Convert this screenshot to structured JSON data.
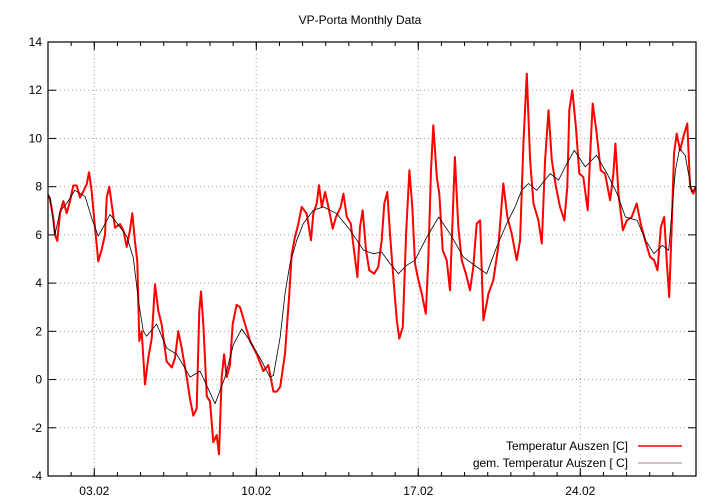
{
  "chart_data": {
    "type": "line",
    "title": "VP-Porta Monthly Data",
    "xlabel": "",
    "ylabel": "",
    "xlim": [
      "01.02 00:00",
      "29.02 00:00"
    ],
    "ylim": [
      -4,
      14
    ],
    "x_ticks": [
      "03.02",
      "10.02",
      "17.02",
      "24.02"
    ],
    "y_ticks": [
      -4,
      -2,
      0,
      2,
      4,
      6,
      8,
      10,
      12,
      14
    ],
    "grid": true,
    "legend_position": "bottom-right",
    "series": [
      {
        "name": "Temperatur Auszen [C]",
        "color": "#ff0000",
        "points": [
          [
            "01.02 00:00",
            7.6
          ],
          [
            "01.02 02:00",
            7.5
          ],
          [
            "01.02 05:30",
            6.7
          ],
          [
            "01.02 07:15",
            6.0
          ],
          [
            "01.02 09:40",
            5.75
          ],
          [
            "01.02 12:25",
            6.9
          ],
          [
            "01.02 15:50",
            7.4
          ],
          [
            "01.02 19:25",
            6.9
          ],
          [
            "01.02 22:50",
            7.4
          ],
          [
            "02.02 02:15",
            8.05
          ],
          [
            "02.02 05:45",
            8.05
          ],
          [
            "02.02 09:10",
            7.55
          ],
          [
            "02.02 12:35",
            7.8
          ],
          [
            "02.02 16:05",
            8.1
          ],
          [
            "02.02 18:30",
            8.6
          ],
          [
            "02.02 21:20",
            7.8
          ],
          [
            "03.02 00:45",
            6.3
          ],
          [
            "03.02 04:10",
            4.9
          ],
          [
            "03.02 07:40",
            5.4
          ],
          [
            "03.02 11:05",
            6.0
          ],
          [
            "03.02 12:50",
            7.55
          ],
          [
            "03.02 15:35",
            8.0
          ],
          [
            "03.02 18:00",
            7.3
          ],
          [
            "03.02 21:30",
            6.3
          ],
          [
            "04.02 02:40",
            6.45
          ],
          [
            "04.02 06:05",
            6.2
          ],
          [
            "04.02 09:35",
            5.5
          ],
          [
            "04.02 13:00",
            6.2
          ],
          [
            "04.02 15:25",
            6.9
          ],
          [
            "04.02 18:10",
            5.75
          ],
          [
            "04.02 20:35",
            4.9
          ],
          [
            "04.02 22:40",
            1.6
          ],
          [
            "05.02 01:10",
            2.0
          ],
          [
            "05.02 04:35",
            -0.2
          ],
          [
            "05.02 08:00",
            0.9
          ],
          [
            "05.02 11:30",
            1.7
          ],
          [
            "05.02 14:55",
            3.95
          ],
          [
            "05.02 18:25",
            2.85
          ],
          [
            "05.02 21:50",
            2.3
          ],
          [
            "06.02 03:00",
            0.75
          ],
          [
            "06.02 08:20",
            0.5
          ],
          [
            "06.02 11:45",
            0.9
          ],
          [
            "06.02 15:10",
            2.0
          ],
          [
            "06.02 18:40",
            1.3
          ],
          [
            "06.02 23:50",
            0.1
          ],
          [
            "07.02 03:15",
            -0.8
          ],
          [
            "07.02 06:40",
            -1.5
          ],
          [
            "07.02 10:15",
            -1.2
          ],
          [
            "07.02 12:55",
            2.85
          ],
          [
            "07.02 14:40",
            3.65
          ],
          [
            "07.02 17:05",
            2.3
          ],
          [
            "07.02 20:40",
            -0.7
          ],
          [
            "08.02 00:00",
            -0.9
          ],
          [
            "08.02 03:25",
            -2.6
          ],
          [
            "08.02 07:00",
            -2.3
          ],
          [
            "08.02 09:20",
            -3.1
          ],
          [
            "08.02 12:10",
            0.1
          ],
          [
            "08.02 14:35",
            1.05
          ],
          [
            "08.02 17:20",
            0.1
          ],
          [
            "08.02 20:45",
            0.6
          ],
          [
            "08.02 23:30",
            2.3
          ],
          [
            "09.02 03:35",
            3.1
          ],
          [
            "09.02 07:05",
            3.0
          ],
          [
            "09.02 12:15",
            2.3
          ],
          [
            "09.02 17:30",
            1.6
          ],
          [
            "10.02 00:30",
            1.05
          ],
          [
            "10.02 07:25",
            0.35
          ],
          [
            "10.02 12:30",
            0.6
          ],
          [
            "10.02 17:45",
            -0.5
          ],
          [
            "10.02 21:10",
            -0.5
          ],
          [
            "11.02 00:45",
            -0.3
          ],
          [
            "11.02 05:45",
            1.07
          ],
          [
            "11.02 10:15",
            3.56
          ],
          [
            "11.02 12:45",
            5.2
          ],
          [
            "11.02 16:05",
            5.9
          ],
          [
            "11.02 19:40",
            6.47
          ],
          [
            "11.02 23:05",
            7.16
          ],
          [
            "12.02 04:15",
            6.88
          ],
          [
            "12.02 08:45",
            5.78
          ],
          [
            "12.02 11:10",
            6.88
          ],
          [
            "12.02 14:40",
            7.3
          ],
          [
            "12.02 17:05",
            8.06
          ],
          [
            "12.02 19:55",
            7.16
          ],
          [
            "12.02 23:20",
            7.78
          ],
          [
            "13.02 02:45",
            7.16
          ],
          [
            "13.02 07:15",
            6.26
          ],
          [
            "13.02 10:40",
            6.74
          ],
          [
            "13.02 15:35",
            7.16
          ],
          [
            "13.02 18:20",
            7.71
          ],
          [
            "13.02 21:50",
            6.74
          ],
          [
            "14.02 02:00",
            6.47
          ],
          [
            "14.02 05:20",
            5.36
          ],
          [
            "14.02 08:50",
            4.25
          ],
          [
            "14.02 11:35",
            6.33
          ],
          [
            "14.02 14:20",
            7.02
          ],
          [
            "14.02 17:45",
            5.36
          ],
          [
            "14.02 21:10",
            4.53
          ],
          [
            "15.02 02:10",
            4.39
          ],
          [
            "15.02 06:30",
            4.67
          ],
          [
            "15.02 10:05",
            5.78
          ],
          [
            "15.02 12:45",
            7.3
          ],
          [
            "15.02 15:50",
            7.78
          ],
          [
            "15.02 18:40",
            6.05
          ],
          [
            "15.02 22:05",
            4.25
          ],
          [
            "16.02 01:40",
            2.46
          ],
          [
            "16.02 04:20",
            1.7
          ],
          [
            "16.02 07:55",
            2.18
          ],
          [
            "16.02 11:20",
            6.05
          ],
          [
            "16.02 14:50",
            8.68
          ],
          [
            "16.02 17:50",
            7.16
          ],
          [
            "16.02 20:35",
            4.81
          ],
          [
            "17.02 00:05",
            4.12
          ],
          [
            "17.02 03:40",
            3.56
          ],
          [
            "17.02 07:45",
            2.73
          ],
          [
            "17.02 10:25",
            4.95
          ],
          [
            "17.02 13:10",
            8.68
          ],
          [
            "17.02 15:35",
            10.55
          ],
          [
            "17.02 19:10",
            8.4
          ],
          [
            "17.02 21:50",
            7.71
          ],
          [
            "18.02 01:20",
            5.36
          ],
          [
            "18.02 05:30",
            4.95
          ],
          [
            "18.02 08:55",
            3.7
          ],
          [
            "18.02 11:15",
            6.33
          ],
          [
            "18.02 14:00",
            9.23
          ],
          [
            "18.02 17:30",
            6.33
          ],
          [
            "18.02 21:00",
            4.95
          ],
          [
            "19.02 01:25",
            4.39
          ],
          [
            "19.02 05:35",
            3.7
          ],
          [
            "19.02 09:05",
            4.67
          ],
          [
            "19.02 12:35",
            6.47
          ],
          [
            "19.02 16:05",
            6.6
          ],
          [
            "19.02 19:30",
            2.46
          ],
          [
            "19.02 23:35",
            3.29
          ],
          [
            "20.02 00:45",
            3.56
          ],
          [
            "20.02 05:50",
            4.12
          ],
          [
            "20.02 11:00",
            5.5
          ],
          [
            "20.02 16:10",
            8.13
          ],
          [
            "20.02 20:25",
            6.74
          ],
          [
            "21.02 00:50",
            6.05
          ],
          [
            "21.02 06:05",
            4.95
          ],
          [
            "21.02 09:35",
            5.78
          ],
          [
            "21.02 13:00",
            9.79
          ],
          [
            "21.02 16:35",
            12.69
          ],
          [
            "21.02 20:00",
            9.1
          ],
          [
            "21.02 23:30",
            7.3
          ],
          [
            "22.02 04:35",
            6.6
          ],
          [
            "22.02 08:05",
            5.64
          ],
          [
            "22.02 11:30",
            9.1
          ],
          [
            "22.02 15:00",
            11.17
          ],
          [
            "22.02 18:30",
            9.1
          ],
          [
            "22.02 22:50",
            7.99
          ],
          [
            "23.02 03:00",
            7.16
          ],
          [
            "23.02 07:30",
            6.6
          ],
          [
            "23.02 10:35",
            7.99
          ],
          [
            "23.02 12:35",
            11.17
          ],
          [
            "23.02 15:40",
            12.0
          ],
          [
            "23.02 19:30",
            10.48
          ],
          [
            "23.02 23:00",
            8.54
          ],
          [
            "24.02 03:10",
            8.4
          ],
          [
            "24.02 07:40",
            7.02
          ],
          [
            "24.02 10:45",
            9.79
          ],
          [
            "24.02 12:50",
            11.45
          ],
          [
            "24.02 17:00",
            10.2
          ],
          [
            "24.02 21:10",
            8.68
          ],
          [
            "25.02 01:40",
            8.54
          ],
          [
            "25.02 06:55",
            7.44
          ],
          [
            "25.02 10:20",
            8.54
          ],
          [
            "25.02 12:25",
            9.79
          ],
          [
            "25.02 15:35",
            7.71
          ],
          [
            "25.02 20:10",
            6.19
          ],
          [
            "26.02 00:15",
            6.6
          ],
          [
            "26.02 05:20",
            6.74
          ],
          [
            "26.02 10:30",
            7.3
          ],
          [
            "26.02 14:40",
            6.47
          ],
          [
            "26.02 19:10",
            5.78
          ],
          [
            "27.02 00:20",
            5.09
          ],
          [
            "27.02 04:35",
            4.95
          ],
          [
            "27.02 08:05",
            4.53
          ],
          [
            "27.02 11:35",
            6.33
          ],
          [
            "27.02 15:00",
            6.74
          ],
          [
            "27.02 17:50",
            4.81
          ],
          [
            "27.02 20:10",
            3.42
          ],
          [
            "27.02 22:50",
            6.33
          ],
          [
            "28.02 01:10",
            9.37
          ],
          [
            "28.02 04:00",
            10.2
          ],
          [
            "28.02 07:30",
            9.51
          ],
          [
            "28.02 10:50",
            10.06
          ],
          [
            "28.02 15:00",
            10.62
          ],
          [
            "28.02 17:50",
            7.99
          ],
          [
            "28.02 21:10",
            7.71
          ],
          [
            "28.02 23:45",
            7.99
          ]
        ]
      },
      {
        "name": "gem. Temperatur Auszen [ C]",
        "color": "#000000",
        "points": [
          [
            "01.02 00:00",
            7.7
          ],
          [
            "01.02 02:10",
            7.55
          ],
          [
            "01.02 07:10",
            6.0
          ],
          [
            "01.02 12:30",
            7.0
          ],
          [
            "01.02 19:25",
            7.3
          ],
          [
            "02.02 03:50",
            7.85
          ],
          [
            "02.02 14:25",
            7.6
          ],
          [
            "02.02 21:20",
            6.7
          ],
          [
            "03.02 04:05",
            5.95
          ],
          [
            "03.02 11:05",
            6.45
          ],
          [
            "03.02 16:20",
            6.85
          ],
          [
            "03.02 23:15",
            6.5
          ],
          [
            "04.02 09:35",
            5.95
          ],
          [
            "04.02 16:30",
            5.05
          ],
          [
            "04.02 21:50",
            3.25
          ],
          [
            "05.02 02:50",
            2.0
          ],
          [
            "05.02 06:15",
            1.8
          ],
          [
            "05.02 16:35",
            2.3
          ],
          [
            "06.02 03:05",
            1.3
          ],
          [
            "06.02 13:25",
            1.05
          ],
          [
            "07.02 03:20",
            0.1
          ],
          [
            "07.02 13:40",
            0.35
          ],
          [
            "08.02 05:15",
            -1.0
          ],
          [
            "08.02 15:35",
            0.1
          ],
          [
            "09.02 00:15",
            1.45
          ],
          [
            "09.02 08:50",
            2.1
          ],
          [
            "09.02 17:30",
            1.6
          ],
          [
            "10.02 03:50",
            0.9
          ],
          [
            "10.02 14:10",
            0.1
          ],
          [
            "10.02 17:45",
            0.17
          ],
          [
            "11.02 00:45",
            1.77
          ],
          [
            "11.02 05:45",
            3.56
          ],
          [
            "11.02 11:00",
            4.81
          ],
          [
            "11.02 18:00",
            5.78
          ],
          [
            "12.02 00:45",
            6.47
          ],
          [
            "12.02 11:15",
            7.02
          ],
          [
            "12.02 21:35",
            7.16
          ],
          [
            "13.02 11:30",
            6.88
          ],
          [
            "14.02 01:25",
            6.19
          ],
          [
            "14.02 15:20",
            5.36
          ],
          [
            "15.02 01:40",
            5.22
          ],
          [
            "15.02 10:05",
            5.29
          ],
          [
            "15.02 18:40",
            4.81
          ],
          [
            "16.02 03:20",
            4.39
          ],
          [
            "16.02 12:00",
            4.74
          ],
          [
            "16.02 20:35",
            4.95
          ],
          [
            "17.02 08:50",
            5.91
          ],
          [
            "17.02 21:10",
            6.74
          ],
          [
            "18.02 08:55",
            6.05
          ],
          [
            "18.02 22:50",
            5.08
          ],
          [
            "19.02 12:45",
            4.67
          ],
          [
            "19.02 23:00",
            4.39
          ],
          [
            "20.02 09:20",
            5.5
          ],
          [
            "20.02 19:40",
            6.47
          ],
          [
            "21.02 04:20",
            7.16
          ],
          [
            "21.02 11:15",
            7.85
          ],
          [
            "21.02 18:15",
            8.13
          ],
          [
            "22.02 02:50",
            7.85
          ],
          [
            "22.02 16:50",
            8.54
          ],
          [
            "23.02 01:25",
            8.27
          ],
          [
            "23.02 10:05",
            8.96
          ],
          [
            "23.02 17:45",
            9.51
          ],
          [
            "24.02 05:15",
            8.82
          ],
          [
            "24.02 16:50",
            9.3
          ],
          [
            "25.02 03:50",
            8.54
          ],
          [
            "25.02 14:10",
            7.71
          ],
          [
            "25.02 22:50",
            6.74
          ],
          [
            "26.02 11:00",
            6.6
          ],
          [
            "26.02 19:40",
            5.78
          ],
          [
            "27.02 04:20",
            5.22
          ],
          [
            "27.02 13:00",
            5.57
          ],
          [
            "27.02 19:40",
            5.36
          ],
          [
            "28.02 02:40",
            8.68
          ],
          [
            "28.02 07:00",
            9.58
          ],
          [
            "28.02 12:45",
            9.3
          ],
          [
            "28.02 19:40",
            7.78
          ],
          [
            "28.02 23:45",
            7.99
          ]
        ]
      }
    ]
  }
}
